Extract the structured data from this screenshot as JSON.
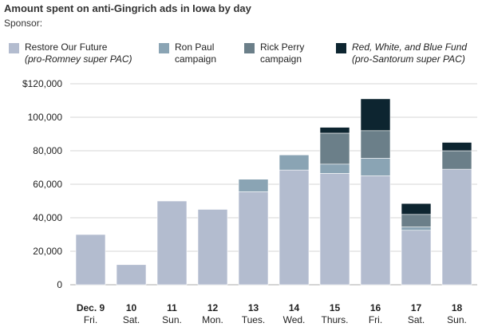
{
  "title": "Amount spent on anti-Gingrich ads in Iowa by day",
  "sponsor_label": "Sponsor:",
  "legend": [
    {
      "line1": "Restore Our Future",
      "line2": "(pro-Romney super PAC)",
      "color": "#b3bccf",
      "italic_line1": false,
      "italic_line2": true
    },
    {
      "line1": "Ron Paul",
      "line2": "campaign",
      "color": "#8aa4b4",
      "italic_line1": false,
      "italic_line2": false
    },
    {
      "line1": "Rick Perry",
      "line2": "campaign",
      "color": "#6b7f89",
      "italic_line1": false,
      "italic_line2": false
    },
    {
      "line1": "Red, White, and Blue Fund",
      "line2": "(pro-Santorum super PAC)",
      "color": "#0d2530",
      "italic_line1": true,
      "italic_line2": true
    }
  ],
  "chart_data": {
    "type": "bar",
    "stacked": true,
    "title": "Amount spent on anti-Gingrich ads in Iowa by day",
    "ylim": [
      0,
      120000
    ],
    "y_ticks": [
      0,
      20000,
      40000,
      60000,
      80000,
      100000,
      120000
    ],
    "y_tick_labels": [
      "0",
      "20,000",
      "40,000",
      "60,000",
      "80,000",
      "100,000",
      "$120,000"
    ],
    "grid": true,
    "categories": [
      "Dec. 9",
      "10",
      "11",
      "12",
      "13",
      "14",
      "15",
      "16",
      "17",
      "18"
    ],
    "day_labels": [
      "Fri.",
      "Sat.",
      "Sun.",
      "Mon.",
      "Tues.",
      "Wed.",
      "Thurs.",
      "Fri.",
      "Sat.",
      "Sun."
    ],
    "series": [
      {
        "name": "Restore Our Future (pro-Romney super PAC)",
        "color": "#b3bccf",
        "values": [
          30000,
          12000,
          50000,
          45000,
          55500,
          68500,
          66500,
          65000,
          32500,
          69000
        ]
      },
      {
        "name": "Ron Paul campaign",
        "color": "#8aa4b4",
        "values": [
          0,
          0,
          0,
          0,
          7500,
          9000,
          5500,
          10500,
          2000,
          0
        ]
      },
      {
        "name": "Rick Perry campaign",
        "color": "#6b7f89",
        "values": [
          0,
          0,
          0,
          0,
          0,
          0,
          18500,
          16500,
          7500,
          11000
        ]
      },
      {
        "name": "Red, White, and Blue Fund (pro-Santorum super PAC)",
        "color": "#0d2530",
        "values": [
          0,
          0,
          0,
          0,
          0,
          0,
          3500,
          19000,
          6500,
          5000
        ]
      }
    ]
  }
}
